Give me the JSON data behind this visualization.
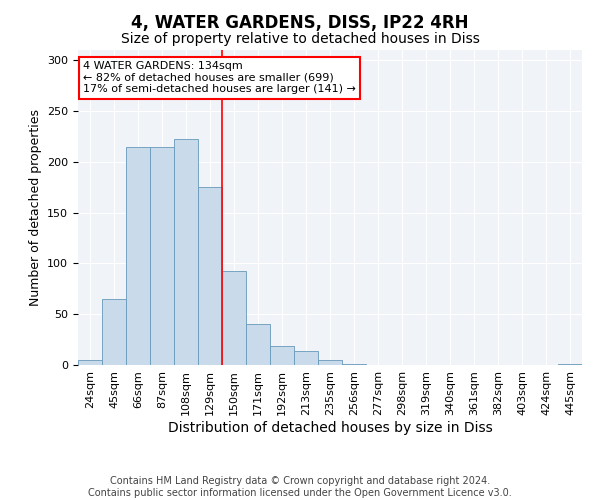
{
  "title": "4, WATER GARDENS, DISS, IP22 4RH",
  "subtitle": "Size of property relative to detached houses in Diss",
  "xlabel": "Distribution of detached houses by size in Diss",
  "ylabel": "Number of detached properties",
  "footer_line1": "Contains HM Land Registry data © Crown copyright and database right 2024.",
  "footer_line2": "Contains public sector information licensed under the Open Government Licence v3.0.",
  "annotation_line1": "4 WATER GARDENS: 134sqm",
  "annotation_line2": "← 82% of detached houses are smaller (699)",
  "annotation_line3": "17% of semi-detached houses are larger (141) →",
  "bar_labels": [
    "24sqm",
    "45sqm",
    "66sqm",
    "87sqm",
    "108sqm",
    "129sqm",
    "150sqm",
    "171sqm",
    "192sqm",
    "213sqm",
    "235sqm",
    "256sqm",
    "277sqm",
    "298sqm",
    "319sqm",
    "340sqm",
    "361sqm",
    "382sqm",
    "403sqm",
    "424sqm",
    "445sqm"
  ],
  "bar_values": [
    5,
    65,
    215,
    215,
    222,
    175,
    93,
    40,
    19,
    14,
    5,
    1,
    0,
    0,
    0,
    0,
    0,
    0,
    0,
    0,
    1
  ],
  "bar_color": "#c9daea",
  "bar_edge_color": "#6699bb",
  "vline_x": 5.5,
  "vline_color": "red",
  "vline_lw": 1.2,
  "ylim": [
    0,
    310
  ],
  "yticks": [
    0,
    50,
    100,
    150,
    200,
    250,
    300
  ],
  "title_fontsize": 12,
  "subtitle_fontsize": 10,
  "xlabel_fontsize": 10,
  "ylabel_fontsize": 9,
  "tick_fontsize": 8,
  "annotation_fontsize": 8,
  "footer_fontsize": 7
}
